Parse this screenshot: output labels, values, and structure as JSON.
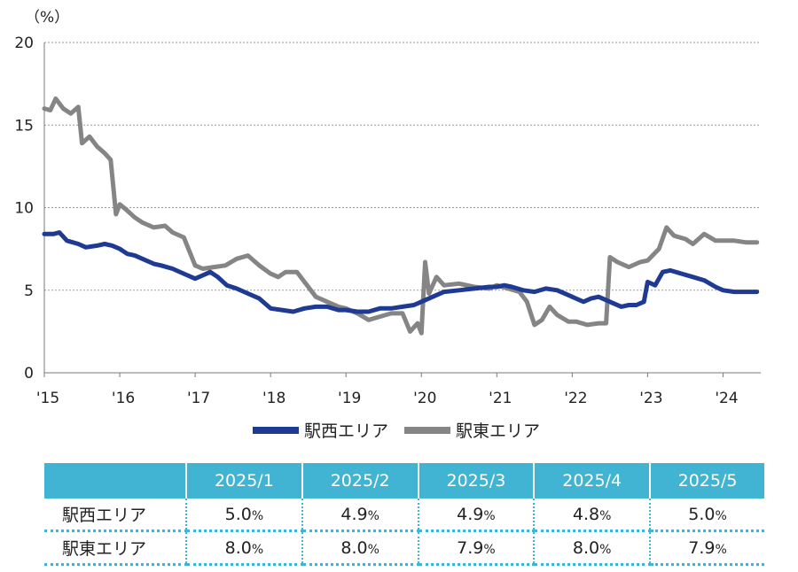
{
  "chart_data": {
    "type": "line",
    "unit_label": "（%）",
    "ylim": [
      0,
      20
    ],
    "yticks": [
      0,
      5,
      10,
      15,
      20
    ],
    "x_start": 2015.0,
    "x_end": 2024.5,
    "x_tick_labels": [
      "'15",
      "'16",
      "'17",
      "'18",
      "'19",
      "'20",
      "'21",
      "'22",
      "'23",
      "'24"
    ],
    "x_tick_positions": [
      2015,
      2016,
      2017,
      2018,
      2019,
      2020,
      2021,
      2022,
      2023,
      2024
    ],
    "grid": "horizontal dotted",
    "series": [
      {
        "name": "駅西エリア",
        "color": "#1f3a93",
        "x": [
          2015.0,
          2015.12,
          2015.2,
          2015.3,
          2015.45,
          2015.55,
          2015.7,
          2015.8,
          2015.9,
          2016.0,
          2016.1,
          2016.2,
          2016.3,
          2016.45,
          2016.55,
          2016.7,
          2016.85,
          2017.0,
          2017.1,
          2017.2,
          2017.3,
          2017.42,
          2017.55,
          2017.7,
          2017.85,
          2018.0,
          2018.15,
          2018.3,
          2018.45,
          2018.6,
          2018.75,
          2018.9,
          2019.0,
          2019.15,
          2019.3,
          2019.45,
          2019.6,
          2019.75,
          2019.9,
          2020.0,
          2020.15,
          2020.3,
          2020.5,
          2020.7,
          2020.9,
          2021.0,
          2021.1,
          2021.2,
          2021.35,
          2021.5,
          2021.65,
          2021.8,
          2021.95,
          2022.05,
          2022.15,
          2022.25,
          2022.35,
          2022.45,
          2022.55,
          2022.65,
          2022.75,
          2022.85,
          2022.95,
          2023.0,
          2023.1,
          2023.2,
          2023.3,
          2023.45,
          2023.6,
          2023.75,
          2023.9,
          2024.0,
          2024.15,
          2024.3,
          2024.45
        ],
        "values": [
          8.4,
          8.4,
          8.5,
          8.0,
          7.8,
          7.6,
          7.7,
          7.8,
          7.7,
          7.5,
          7.2,
          7.1,
          6.9,
          6.6,
          6.5,
          6.3,
          6.0,
          5.7,
          5.9,
          6.1,
          5.8,
          5.3,
          5.1,
          4.8,
          4.5,
          3.9,
          3.8,
          3.7,
          3.9,
          4.0,
          4.0,
          3.8,
          3.8,
          3.7,
          3.7,
          3.9,
          3.9,
          4.0,
          4.1,
          4.3,
          4.6,
          4.9,
          5.0,
          5.1,
          5.2,
          5.2,
          5.3,
          5.2,
          5.0,
          4.9,
          5.1,
          5.0,
          4.7,
          4.5,
          4.3,
          4.5,
          4.6,
          4.4,
          4.2,
          4.0,
          4.1,
          4.1,
          4.3,
          5.5,
          5.3,
          6.1,
          6.2,
          6.0,
          5.8,
          5.6,
          5.2,
          5.0,
          4.9,
          4.9,
          4.9
        ]
      },
      {
        "name": "駅東エリア",
        "color": "#858585",
        "x": [
          2015.0,
          2015.08,
          2015.15,
          2015.25,
          2015.35,
          2015.45,
          2015.5,
          2015.6,
          2015.7,
          2015.8,
          2015.88,
          2015.95,
          2016.0,
          2016.08,
          2016.2,
          2016.3,
          2016.45,
          2016.6,
          2016.7,
          2016.85,
          2017.0,
          2017.1,
          2017.25,
          2017.4,
          2017.55,
          2017.7,
          2017.85,
          2018.0,
          2018.1,
          2018.2,
          2018.35,
          2018.45,
          2018.6,
          2018.75,
          2018.9,
          2019.0,
          2019.15,
          2019.3,
          2019.45,
          2019.6,
          2019.75,
          2019.85,
          2019.95,
          2020.0,
          2020.05,
          2020.1,
          2020.2,
          2020.3,
          2020.5,
          2020.7,
          2020.9,
          2021.0,
          2021.15,
          2021.3,
          2021.4,
          2021.5,
          2021.6,
          2021.7,
          2021.8,
          2021.95,
          2022.05,
          2022.2,
          2022.35,
          2022.45,
          2022.5,
          2022.6,
          2022.75,
          2022.9,
          2023.0,
          2023.15,
          2023.25,
          2023.35,
          2023.5,
          2023.6,
          2023.75,
          2023.9,
          2024.0,
          2024.15,
          2024.3,
          2024.45
        ],
        "values": [
          16.0,
          15.9,
          16.6,
          16.0,
          15.7,
          16.1,
          13.9,
          14.3,
          13.7,
          13.3,
          12.9,
          9.6,
          10.2,
          9.9,
          9.4,
          9.1,
          8.8,
          8.9,
          8.5,
          8.2,
          6.5,
          6.3,
          6.4,
          6.5,
          6.9,
          7.1,
          6.5,
          6.0,
          5.8,
          6.1,
          6.1,
          5.5,
          4.6,
          4.3,
          4.0,
          3.9,
          3.6,
          3.2,
          3.4,
          3.6,
          3.6,
          2.5,
          3.0,
          2.4,
          6.7,
          4.8,
          5.8,
          5.3,
          5.4,
          5.2,
          5.1,
          5.3,
          5.1,
          4.9,
          4.3,
          2.9,
          3.2,
          4.0,
          3.5,
          3.1,
          3.1,
          2.9,
          3.0,
          3.0,
          7.0,
          6.7,
          6.4,
          6.7,
          6.8,
          7.5,
          8.8,
          8.3,
          8.1,
          7.8,
          8.4,
          8.0,
          8.0,
          8.0,
          7.9,
          7.9
        ]
      }
    ]
  },
  "legend": [
    {
      "name": "駅西エリア",
      "color": "#1f3a93"
    },
    {
      "name": "駅東エリア",
      "color": "#858585"
    }
  ],
  "table": {
    "headers": [
      "",
      "2025/1",
      "2025/2",
      "2025/3",
      "2025/4",
      "2025/5"
    ],
    "rows": [
      {
        "label": "駅西エリア",
        "cells": [
          {
            "v": "5.0",
            "u": "%"
          },
          {
            "v": "4.9",
            "u": "%"
          },
          {
            "v": "4.9",
            "u": "%"
          },
          {
            "v": "4.8",
            "u": "%"
          },
          {
            "v": "5.0",
            "u": "%"
          }
        ]
      },
      {
        "label": "駅東エリア",
        "cells": [
          {
            "v": "8.0",
            "u": "%"
          },
          {
            "v": "8.0",
            "u": "%"
          },
          {
            "v": "7.9",
            "u": "%"
          },
          {
            "v": "8.0",
            "u": "%"
          },
          {
            "v": "7.9",
            "u": "%"
          }
        ]
      }
    ]
  }
}
